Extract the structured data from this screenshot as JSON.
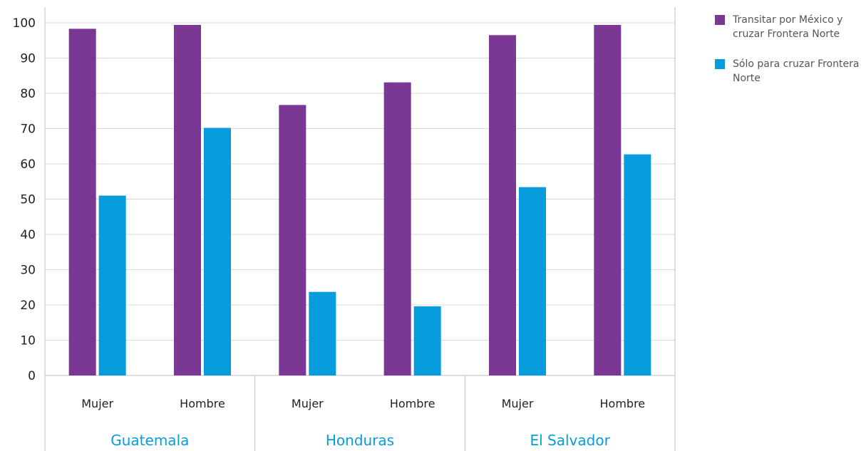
{
  "chart_data": {
    "type": "bar",
    "ylim": [
      0,
      100
    ],
    "yticks": [
      0,
      10,
      20,
      30,
      40,
      50,
      60,
      70,
      80,
      90,
      100
    ],
    "grid": true,
    "legend_position": "right",
    "groups": [
      {
        "label": "Guatemala",
        "categories": [
          "Mujer",
          "Hombre"
        ]
      },
      {
        "label": "Honduras",
        "categories": [
          "Mujer",
          "Hombre"
        ]
      },
      {
        "label": "El Salvador",
        "categories": [
          "Mujer",
          "Hombre"
        ]
      }
    ],
    "series": [
      {
        "name": "Transitar por México y cruzar Frontera Norte",
        "color": "#7A3894",
        "values": [
          98.3,
          99.4,
          76.7,
          83.1,
          96.5,
          99.4
        ]
      },
      {
        "name": "Sólo para cruzar Frontera Norte",
        "color": "#079CDB",
        "values": [
          51.0,
          70.2,
          23.7,
          19.6,
          53.4,
          62.7
        ]
      }
    ]
  },
  "legend": {
    "items": [
      {
        "label": "Transitar por México y cruzar Frontera Norte",
        "color": "#7A3894"
      },
      {
        "label": "Sólo para cruzar Frontera Norte",
        "color": "#079CDB"
      }
    ]
  },
  "colors": {
    "group_label": "#079CDB",
    "grid": "#D9D9D9",
    "axis": "#BFBFBF"
  }
}
